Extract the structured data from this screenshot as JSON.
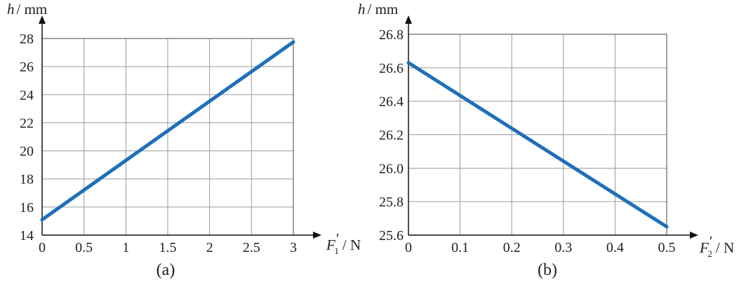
{
  "colors": {
    "series": "#1f6fb8",
    "grid": "#9a9a9a"
  },
  "chart_data": [
    {
      "type": "line",
      "caption": "(a)",
      "ylabel_var": "h",
      "ylabel_unit": "/ mm",
      "xlabel_var": "F",
      "xlabel_sub": "1",
      "xlabel_prime": "′",
      "xlabel_unit": "/ N",
      "xlim": [
        0,
        3
      ],
      "ylim": [
        14,
        28
      ],
      "xticks": [
        0,
        0.5,
        1,
        1.5,
        2,
        2.5,
        3
      ],
      "xtick_labels": [
        "0",
        "0.5",
        "1",
        "1.5",
        "2",
        "2.5",
        "3"
      ],
      "yticks": [
        14,
        16,
        18,
        20,
        22,
        24,
        26,
        28
      ],
      "ytick_labels": [
        "14",
        "16",
        "18",
        "20",
        "22",
        "24",
        "26",
        "28"
      ],
      "grid": true,
      "series": [
        {
          "x": [
            0,
            3
          ],
          "y": [
            15.1,
            27.75
          ]
        }
      ]
    },
    {
      "type": "line",
      "caption": "(b)",
      "ylabel_var": "h",
      "ylabel_unit": "/ mm",
      "xlabel_var": "F",
      "xlabel_sub": "2",
      "xlabel_prime": "′",
      "xlabel_unit": "/ N",
      "xlim": [
        0,
        0.5
      ],
      "ylim": [
        25.6,
        26.8
      ],
      "xticks": [
        0,
        0.1,
        0.2,
        0.3,
        0.4,
        0.5
      ],
      "xtick_labels": [
        "0",
        "0.1",
        "0.2",
        "0.3",
        "0.4",
        "0.5"
      ],
      "yticks": [
        25.6,
        25.8,
        26.0,
        26.2,
        26.4,
        26.6,
        26.8
      ],
      "ytick_labels": [
        "25.6",
        "25.8",
        "26.0",
        "26.2",
        "26.4",
        "26.6",
        "26.8"
      ],
      "grid": true,
      "series": [
        {
          "x": [
            0,
            0.5
          ],
          "y": [
            26.63,
            25.65
          ]
        }
      ]
    }
  ]
}
